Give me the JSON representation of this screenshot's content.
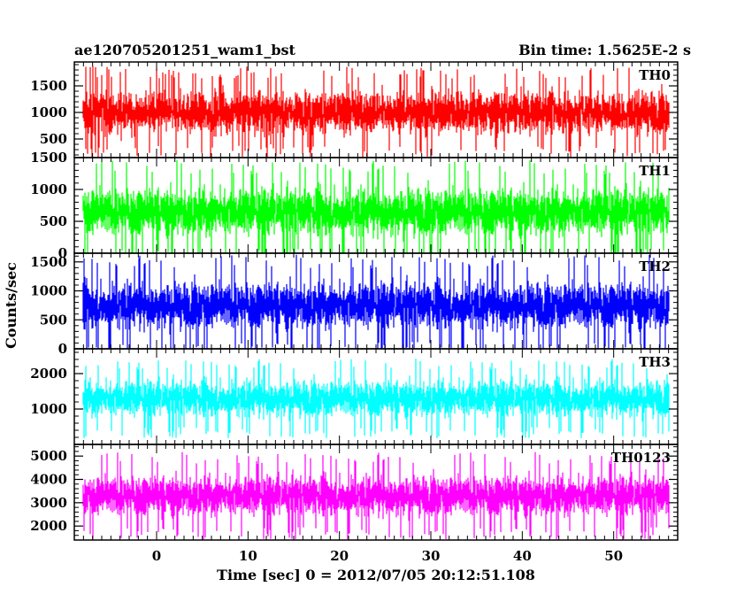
{
  "header": {
    "left_title": "ae120705201251_wam1_bst",
    "right_title": "Bin time: 1.5625E-2 s"
  },
  "axes": {
    "ylabel": "Counts/sec",
    "xlabel": "Time [sec] 0 = 2012/07/05 20:12:51.108"
  },
  "chart_data": {
    "type": "line",
    "title": "ae120705201251_wam1_bst",
    "subtitle": "Bin time: 1.5625E-2 s",
    "xlabel": "Time [sec] 0 = 2012/07/05 20:12:51.108",
    "ylabel": "Counts/sec",
    "xlim": [
      -9,
      57
    ],
    "x_range_of_data": [
      -8,
      56
    ],
    "x_ticks": [
      0,
      10,
      20,
      30,
      40,
      50
    ],
    "bin_time_s": 0.015625,
    "panels": [
      {
        "name": "TH0",
        "color": "#ff0000",
        "ylim": [
          150,
          1950
        ],
        "y_ticks": [
          500,
          1000,
          1500
        ],
        "typical_low": 400,
        "typical_high": 1700,
        "mean_level": 1000,
        "noise_amplitude": 700,
        "spike_to_y": 780,
        "spike_at_x": 12.5
      },
      {
        "name": "TH1",
        "color": "#00ff00",
        "ylim": [
          0,
          1500
        ],
        "y_ticks": [
          0,
          500,
          1000,
          1500
        ],
        "typical_low": 100,
        "typical_high": 1300,
        "mean_level": 650,
        "noise_amplitude": 650
      },
      {
        "name": "TH2",
        "color": "#0000ff",
        "ylim": [
          0,
          1650
        ],
        "y_ticks": [
          0,
          500,
          1000,
          1500
        ],
        "typical_low": 100,
        "typical_high": 1500,
        "mean_level": 750,
        "noise_amplitude": 700
      },
      {
        "name": "TH3",
        "color": "#00ffff",
        "ylim": [
          0,
          2700
        ],
        "y_ticks": [
          1000,
          2000
        ],
        "typical_low": 350,
        "typical_high": 2300,
        "mean_level": 1300,
        "noise_amplitude": 900
      },
      {
        "name": "TH0123",
        "color": "#ff00ff",
        "ylim": [
          1400,
          5500
        ],
        "y_ticks": [
          2000,
          3000,
          4000,
          5000
        ],
        "typical_low": 1700,
        "typical_high": 5000,
        "mean_level": 3300,
        "noise_amplitude": 1500
      }
    ]
  }
}
